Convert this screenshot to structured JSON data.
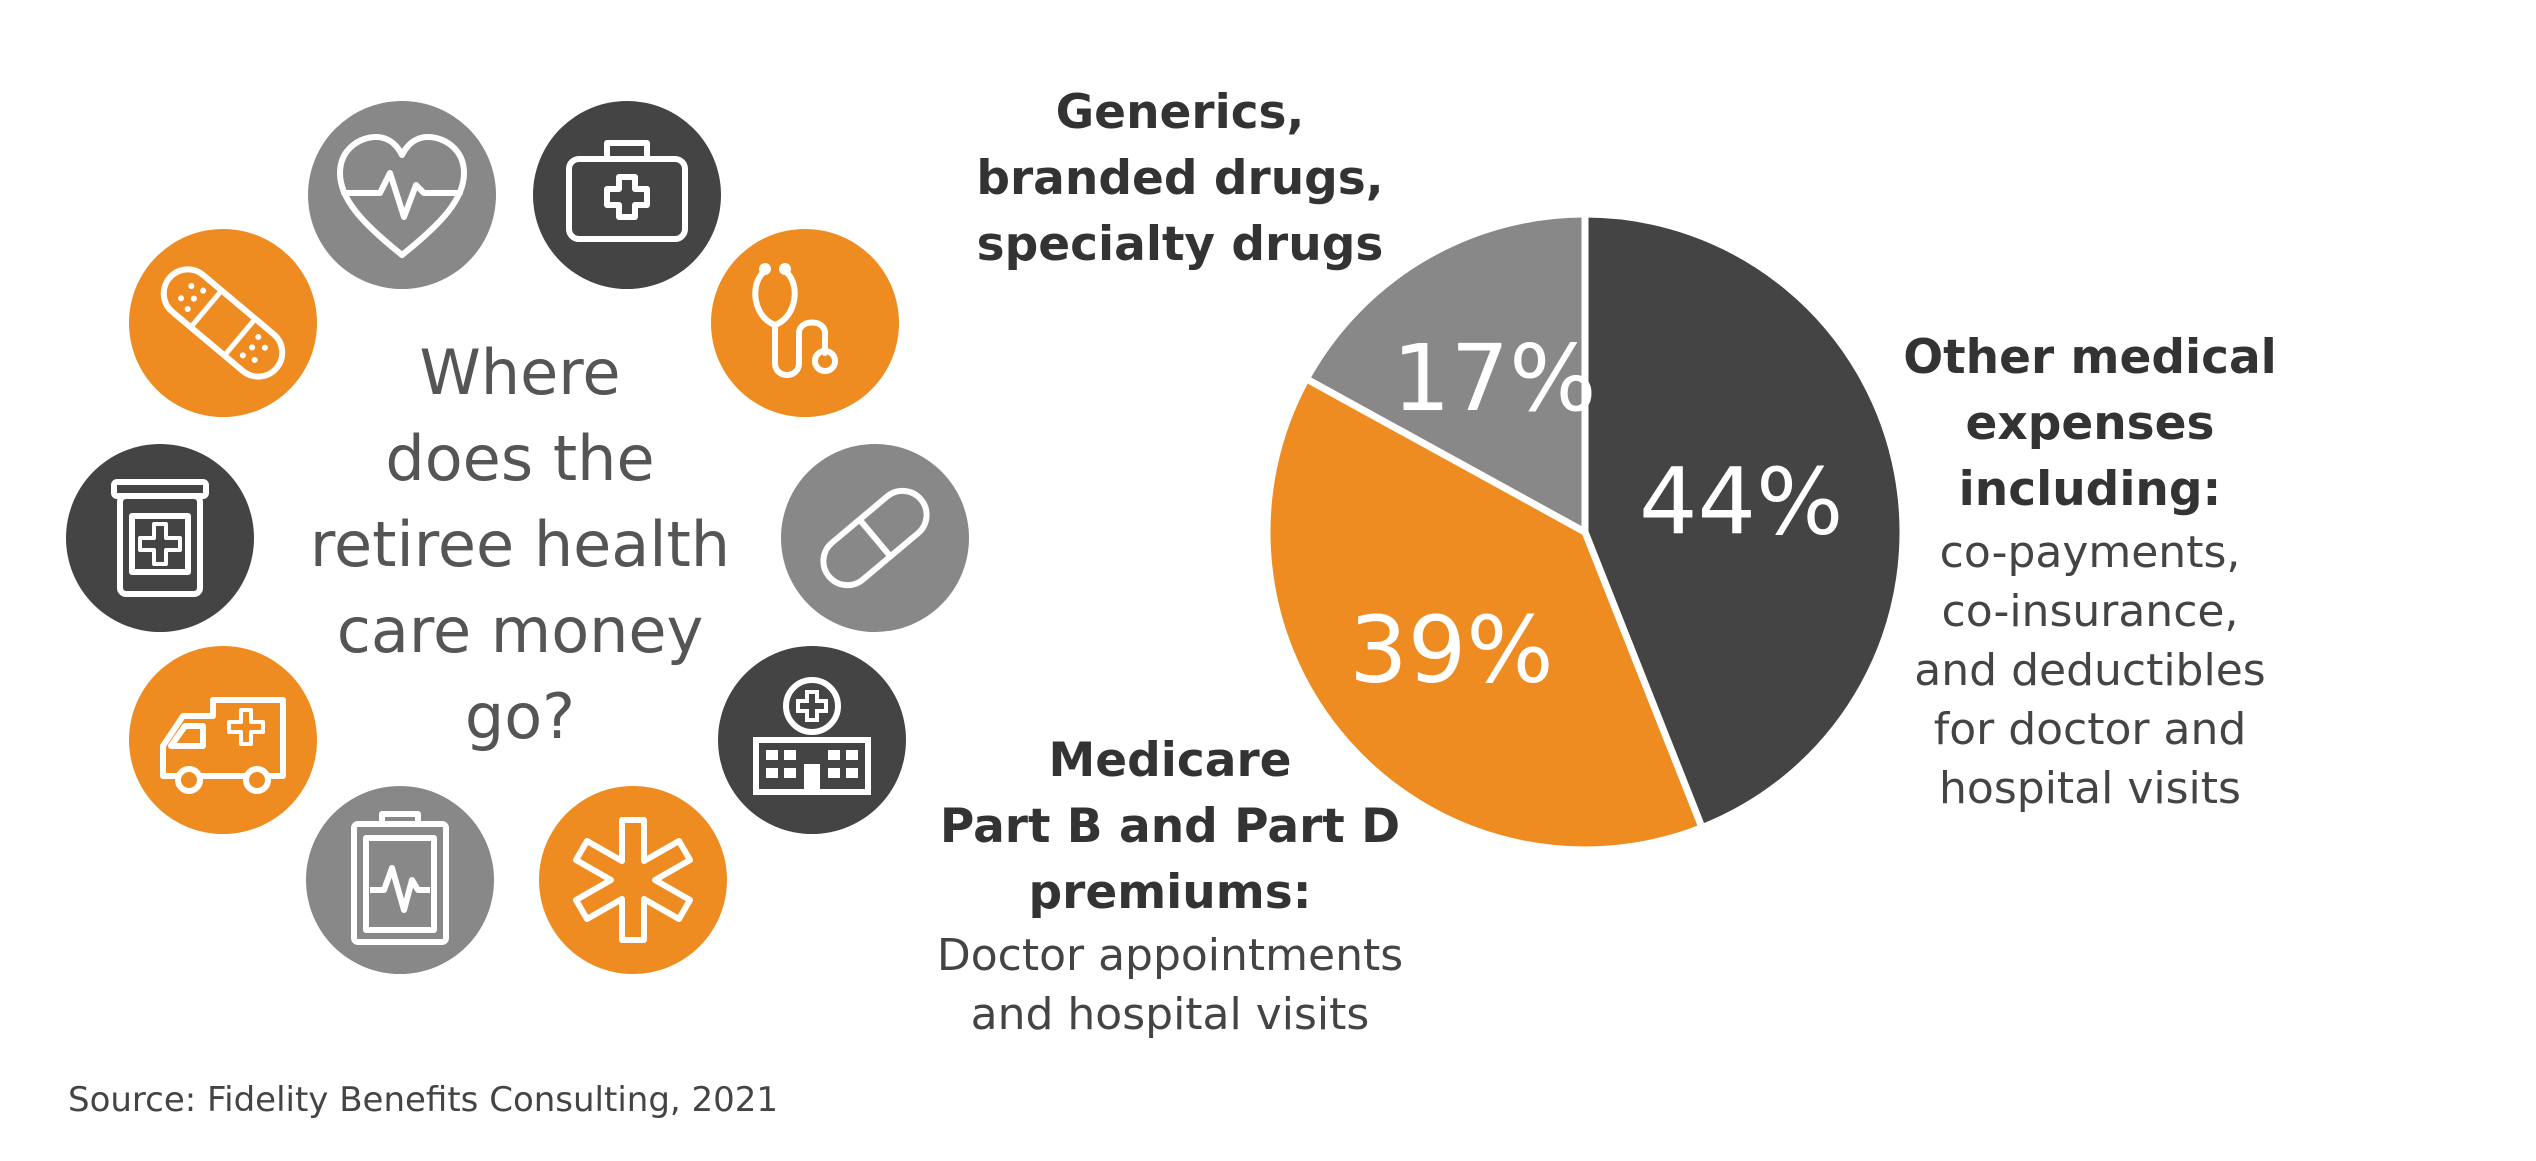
{
  "question": {
    "lines": [
      "Where",
      "does the",
      "retiree health",
      "care money",
      "go?"
    ]
  },
  "icons": [
    {
      "name": "heartbeat-icon",
      "color": "#888888"
    },
    {
      "name": "first-aid-kit-icon",
      "color": "#444444"
    },
    {
      "name": "stethoscope-icon",
      "color": "#EE8C22"
    },
    {
      "name": "pill-capsule-icon",
      "color": "#888888"
    },
    {
      "name": "hospital-icon",
      "color": "#444444"
    },
    {
      "name": "medical-star-icon",
      "color": "#EE8C22"
    },
    {
      "name": "clipboard-chart-icon",
      "color": "#888888"
    },
    {
      "name": "ambulance-icon",
      "color": "#EE8C22"
    },
    {
      "name": "medicine-jar-icon",
      "color": "#444444"
    },
    {
      "name": "bandage-icon",
      "color": "#EE8C22"
    }
  ],
  "chart_data": {
    "type": "pie",
    "slices": [
      {
        "label": "Other medical expenses including:",
        "value": 44,
        "value_label": "44%",
        "color": "#444444"
      },
      {
        "label": "Medicare Part B and Part D premiums:",
        "value": 39,
        "value_label": "39%",
        "color": "#EE8C22"
      },
      {
        "label": "Generics, branded drugs, specialty drugs",
        "value": 17,
        "value_label": "17%",
        "color": "#888888"
      }
    ]
  },
  "callouts": {
    "generics": {
      "head_lines": [
        "Generics,",
        "branded drugs,",
        "specialty drugs"
      ]
    },
    "other": {
      "head_lines": [
        "Other medical",
        "expenses",
        "including:"
      ],
      "body_lines": [
        "co-payments,",
        "co-insurance,",
        "and deductibles",
        "for doctor and",
        "hospital visits"
      ]
    },
    "medicare": {
      "head_lines": [
        "Medicare",
        "Part B and Part D",
        "premiums:"
      ],
      "body_lines": [
        "Doctor appointments",
        "and hospital visits"
      ]
    }
  },
  "source": "Source: Fidelity Benefits Consulting, 2021",
  "colors": {
    "orange": "#EE8C22",
    "dark_gray": "#444444",
    "mid_gray": "#888888"
  }
}
